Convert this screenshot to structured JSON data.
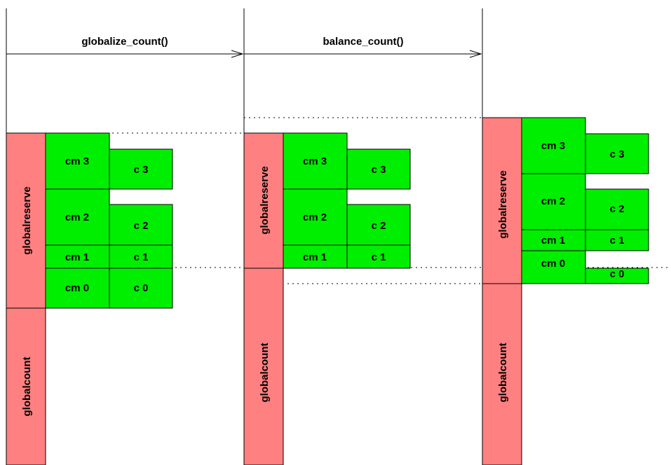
{
  "colors": {
    "reserve": "#ff8080",
    "counter": "#00ee00",
    "line": "#000000"
  },
  "steps": {
    "first": "globalize_count()",
    "second": "balance_count()"
  },
  "labels": {
    "globalreserve": "globalreserve",
    "globalcount": "globalcount"
  },
  "panels": [
    {
      "cells": {
        "cm3": "cm 3",
        "c3": "c 3",
        "cm2": "cm 2",
        "c2": "c 2",
        "cm1": "cm 1",
        "c1": "c 1",
        "cm0": "cm 0",
        "c0": "c 0"
      }
    },
    {
      "cells": {
        "cm3": "cm 3",
        "c3": "c 3",
        "cm2": "cm 2",
        "c2": "c 2",
        "cm1": "cm 1",
        "c1": "c 1"
      }
    },
    {
      "cells": {
        "cm3": "cm 3",
        "c3": "c 3",
        "cm2": "cm 2",
        "c2": "c 2",
        "cm1": "cm 1",
        "c1": "c 1",
        "cm0": "cm 0",
        "c0": "c 0"
      }
    }
  ]
}
